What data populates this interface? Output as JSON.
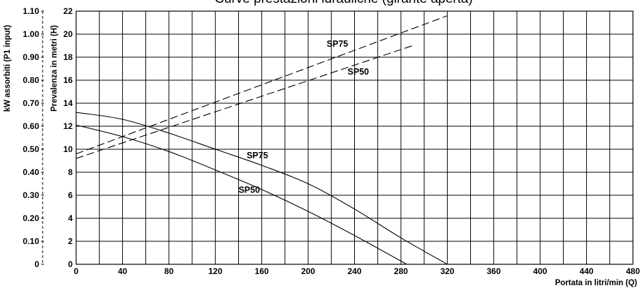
{
  "chart_data": {
    "type": "line",
    "title": "Curve prestazioni idrauliche (girante aperta)",
    "xlabel": "Portata in litri/min (Q)",
    "ylabel": "Prevalenza in metri (H)",
    "y2label": "kW assorbiti (P1 input)",
    "xlim": [
      0,
      480
    ],
    "ylim": [
      0,
      22
    ],
    "y2lim": [
      0,
      1.1
    ],
    "x_ticks": [
      0,
      40,
      80,
      120,
      160,
      200,
      240,
      280,
      320,
      360,
      400,
      440,
      480
    ],
    "y_ticks": [
      0,
      2,
      4,
      6,
      8,
      10,
      12,
      14,
      16,
      18,
      20,
      22
    ],
    "y2_ticks": [
      "0",
      "0.10",
      "0.20",
      "0.30",
      "0.40",
      "0.50",
      "0.60",
      "0.70",
      "0.80",
      "0.90",
      "1.00",
      "1.10"
    ],
    "grid": true,
    "series": [
      {
        "name": "SP75",
        "kind": "head",
        "axis": "left",
        "style": "solid",
        "label_at": [
          147,
          9.2
        ],
        "points": [
          [
            0,
            13.2
          ],
          [
            40,
            12.6
          ],
          [
            80,
            11.4
          ],
          [
            120,
            10.0
          ],
          [
            160,
            8.6
          ],
          [
            200,
            7.0
          ],
          [
            240,
            4.8
          ],
          [
            280,
            2.3
          ],
          [
            320,
            0
          ]
        ]
      },
      {
        "name": "SP50",
        "kind": "head",
        "axis": "left",
        "style": "solid",
        "label_at": [
          140,
          6.2
        ],
        "points": [
          [
            0,
            12.1
          ],
          [
            40,
            11.1
          ],
          [
            80,
            9.8
          ],
          [
            120,
            8.2
          ],
          [
            160,
            6.5
          ],
          [
            200,
            4.6
          ],
          [
            240,
            2.5
          ],
          [
            285,
            0
          ]
        ]
      },
      {
        "name": "SP75",
        "kind": "power",
        "axis": "left",
        "style": "dashed",
        "label_at": [
          216,
          18.9
        ],
        "points": [
          [
            0,
            9.6
          ],
          [
            320,
            21.6
          ]
        ]
      },
      {
        "name": "SP50",
        "kind": "power",
        "axis": "left",
        "style": "dashed",
        "label_at": [
          234,
          16.5
        ],
        "points": [
          [
            0,
            9.2
          ],
          [
            290,
            19.0
          ]
        ]
      }
    ]
  }
}
